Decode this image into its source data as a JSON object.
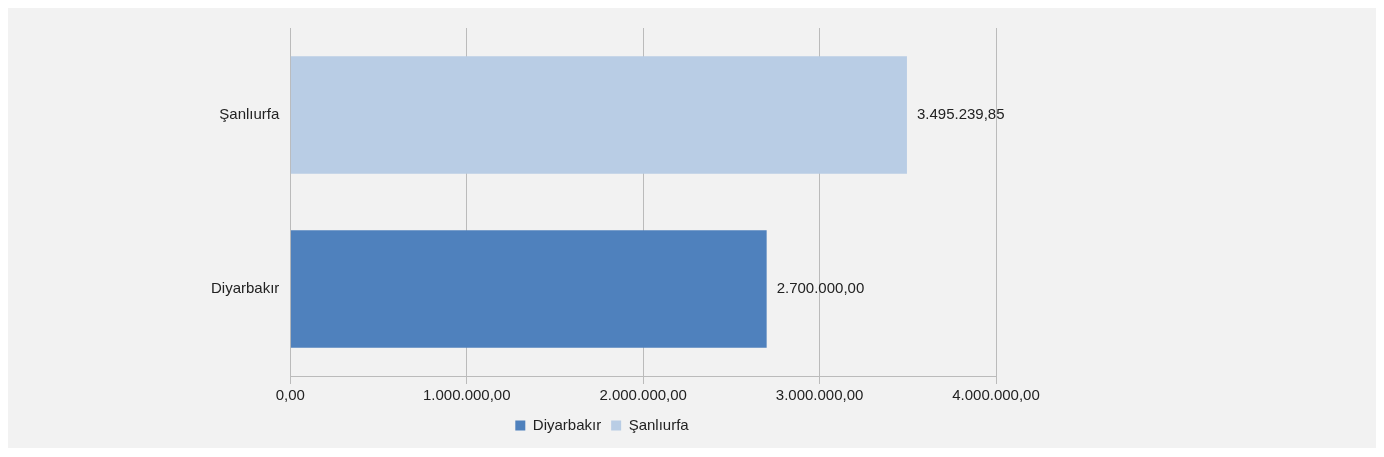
{
  "chart_data": {
    "type": "bar",
    "orientation": "horizontal",
    "categories": [
      "Şanlıurfa",
      "Diyarbakır"
    ],
    "series": [
      {
        "name": "Diyarbakır",
        "color": "#4f81bd",
        "values": [
          null,
          2700000
        ],
        "value_labels": [
          null,
          "2.700.000,00"
        ]
      },
      {
        "name": "Şanlıurfa",
        "color": "#b9cde5",
        "values": [
          3495239.85,
          null
        ],
        "value_labels": [
          "3.495.239,85",
          null
        ]
      }
    ],
    "xlim": [
      0,
      4000000
    ],
    "xticks": [
      {
        "value": 0,
        "label": "0,00"
      },
      {
        "value": 1000000,
        "label": "1.000.000,00"
      },
      {
        "value": 2000000,
        "label": "2.000.000,00"
      },
      {
        "value": 3000000,
        "label": "3.000.000,00"
      },
      {
        "value": 4000000,
        "label": "4.000.000,00"
      }
    ],
    "grid": "x",
    "legend": "bottom"
  }
}
